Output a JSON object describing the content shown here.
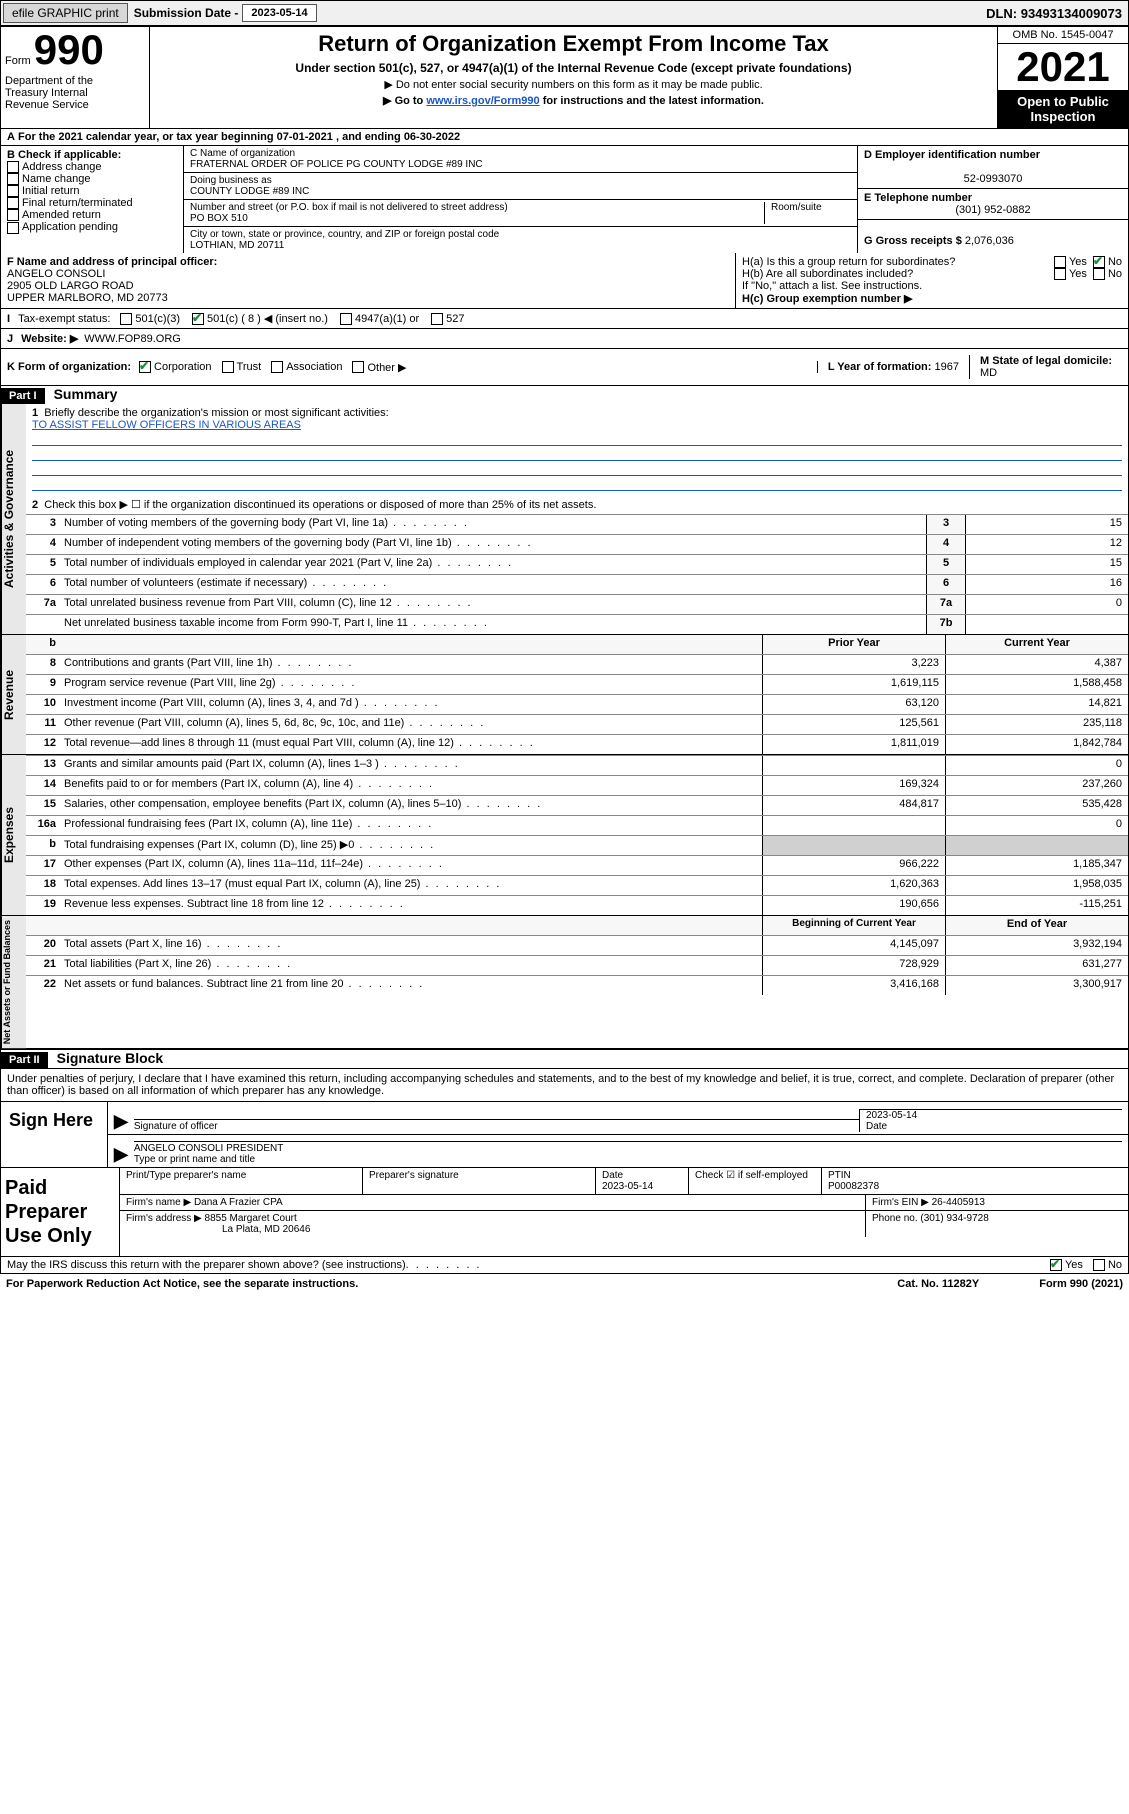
{
  "topbar": {
    "efile": "efile GRAPHIC print",
    "subm_label": "Submission Date - ",
    "subm_date": "2023-05-14",
    "dln_label": "DLN: ",
    "dln": "93493134009073"
  },
  "header": {
    "form_label": "Form",
    "form_num": "990",
    "title": "Return of Organization Exempt From Income Tax",
    "sub": "Under section 501(c), 527, or 4947(a)(1) of the Internal Revenue Code (except private foundations)",
    "note1": "▶ Do not enter social security numbers on this form as it may be made public.",
    "note2_pre": "▶ Go to ",
    "note2_link": "www.irs.gov/Form990",
    "note2_post": " for instructions and the latest information.",
    "omb": "OMB No. 1545-0047",
    "year": "2021",
    "open_public": "Open to Public Inspection",
    "dept": "Department of the Treasury\nInternal Revenue Service"
  },
  "cal_year": {
    "a": "A",
    "text": " For the 2021 calendar year, or tax year beginning ",
    "begin": "07-01-2021",
    "mid": " , and ending ",
    "end": "06-30-2022"
  },
  "box_b": {
    "title": "B Check if applicable:",
    "items": [
      "Address change",
      "Name change",
      "Initial return",
      "Final return/terminated",
      "Amended return",
      "Application pending"
    ]
  },
  "box_c": {
    "name_label": "C Name of organization",
    "name": "FRATERNAL ORDER OF POLICE PG COUNTY LODGE #89 INC",
    "dba_label": "Doing business as",
    "dba": "COUNTY LODGE #89 INC",
    "addr_label": "Number and street (or P.O. box if mail is not delivered to street address)",
    "room_label": "Room/suite",
    "addr": "PO BOX 510",
    "city_label": "City or town, state or province, country, and ZIP or foreign postal code",
    "city": "LOTHIAN, MD  20711"
  },
  "box_d": {
    "label": "D Employer identification number",
    "ein": "52-0993070"
  },
  "box_e": {
    "label": "E Telephone number",
    "phone": "(301) 952-0882"
  },
  "box_g": {
    "label": "G Gross receipts $ ",
    "val": "2,076,036"
  },
  "box_f": {
    "label": "F Name and address of principal officer:",
    "name": "ANGELO CONSOLI",
    "addr1": "2905 OLD LARGO ROAD",
    "addr2": "UPPER MARLBORO, MD  20773"
  },
  "box_h": {
    "ha": "H(a)  Is this a group return for subordinates?",
    "hb": "H(b)  Are all subordinates included?",
    "hb_note": "If \"No,\" attach a list. See instructions.",
    "hc": "H(c)  Group exemption number ▶",
    "yes": "Yes",
    "no": "No"
  },
  "row_i": {
    "label": "I",
    "tax_status": "Tax-exempt status:",
    "opts": [
      "501(c)(3)",
      "501(c) ( 8 ) ◀ (insert no.)",
      "4947(a)(1) or",
      "527"
    ]
  },
  "row_j": {
    "label": "J",
    "website_label": "Website: ▶",
    "website": "WWW.FOP89.ORG"
  },
  "row_k": {
    "label": "K Form of organization:",
    "opts": [
      "Corporation",
      "Trust",
      "Association",
      "Other ▶"
    ]
  },
  "row_l": {
    "label": "L Year of formation: ",
    "val": "1967"
  },
  "row_m": {
    "label": "M State of legal domicile:",
    "val": "MD"
  },
  "part1": {
    "label": "Part I",
    "title": "Summary",
    "q1": "Briefly describe the organization's mission or most significant activities:",
    "mission": "TO ASSIST FELLOW OFFICERS IN VARIOUS AREAS",
    "q2": "Check this box ▶ ☐  if the organization discontinued its operations or disposed of more than 25% of its net assets.",
    "lines_gov": [
      {
        "n": "3",
        "d": "Number of voting members of the governing body (Part VI, line 1a)",
        "box": "3",
        "v": "15"
      },
      {
        "n": "4",
        "d": "Number of independent voting members of the governing body (Part VI, line 1b)",
        "box": "4",
        "v": "12"
      },
      {
        "n": "5",
        "d": "Total number of individuals employed in calendar year 2021 (Part V, line 2a)",
        "box": "5",
        "v": "15"
      },
      {
        "n": "6",
        "d": "Total number of volunteers (estimate if necessary)",
        "box": "6",
        "v": "16"
      },
      {
        "n": "7a",
        "d": "Total unrelated business revenue from Part VIII, column (C), line 12",
        "box": "7a",
        "v": "0"
      },
      {
        "n": "",
        "d": "Net unrelated business taxable income from Form 990-T, Part I, line 11",
        "box": "7b",
        "v": ""
      }
    ],
    "col_prior": "Prior Year",
    "col_current": "Current Year",
    "lines_rev": [
      {
        "n": "8",
        "d": "Contributions and grants (Part VIII, line 1h)",
        "p": "3,223",
        "c": "4,387"
      },
      {
        "n": "9",
        "d": "Program service revenue (Part VIII, line 2g)",
        "p": "1,619,115",
        "c": "1,588,458"
      },
      {
        "n": "10",
        "d": "Investment income (Part VIII, column (A), lines 3, 4, and 7d )",
        "p": "63,120",
        "c": "14,821"
      },
      {
        "n": "11",
        "d": "Other revenue (Part VIII, column (A), lines 5, 6d, 8c, 9c, 10c, and 11e)",
        "p": "125,561",
        "c": "235,118"
      },
      {
        "n": "12",
        "d": "Total revenue—add lines 8 through 11 (must equal Part VIII, column (A), line 12)",
        "p": "1,811,019",
        "c": "1,842,784"
      }
    ],
    "lines_exp": [
      {
        "n": "13",
        "d": "Grants and similar amounts paid (Part IX, column (A), lines 1–3 )",
        "p": "",
        "c": "0"
      },
      {
        "n": "14",
        "d": "Benefits paid to or for members (Part IX, column (A), line 4)",
        "p": "169,324",
        "c": "237,260"
      },
      {
        "n": "15",
        "d": "Salaries, other compensation, employee benefits (Part IX, column (A), lines 5–10)",
        "p": "484,817",
        "c": "535,428"
      },
      {
        "n": "16a",
        "d": "Professional fundraising fees (Part IX, column (A), line 11e)",
        "p": "",
        "c": "0"
      },
      {
        "n": "b",
        "d": "Total fundraising expenses (Part IX, column (D), line 25) ▶0",
        "p": "gray",
        "c": "gray"
      },
      {
        "n": "17",
        "d": "Other expenses (Part IX, column (A), lines 11a–11d, 11f–24e)",
        "p": "966,222",
        "c": "1,185,347"
      },
      {
        "n": "18",
        "d": "Total expenses. Add lines 13–17 (must equal Part IX, column (A), line 25)",
        "p": "1,620,363",
        "c": "1,958,035"
      },
      {
        "n": "19",
        "d": "Revenue less expenses. Subtract line 18 from line 12",
        "p": "190,656",
        "c": "-115,251"
      }
    ],
    "col_begin": "Beginning of Current Year",
    "col_end": "End of Year",
    "lines_net": [
      {
        "n": "20",
        "d": "Total assets (Part X, line 16)",
        "p": "4,145,097",
        "c": "3,932,194"
      },
      {
        "n": "21",
        "d": "Total liabilities (Part X, line 26)",
        "p": "728,929",
        "c": "631,277"
      },
      {
        "n": "22",
        "d": "Net assets or fund balances. Subtract line 21 from line 20",
        "p": "3,416,168",
        "c": "3,300,917"
      }
    ],
    "tab_gov": "Activities & Governance",
    "tab_rev": "Revenue",
    "tab_exp": "Expenses",
    "tab_net": "Net Assets or Fund Balances"
  },
  "part2": {
    "label": "Part II",
    "title": "Signature Block",
    "penalty": "Under penalties of perjury, I declare that I have examined this return, including accompanying schedules and statements, and to the best of my knowledge and belief, it is true, correct, and complete. Declaration of preparer (other than officer) is based on all information of which preparer has any knowledge."
  },
  "sign": {
    "here": "Sign Here",
    "sig_officer": "Signature of officer",
    "date": "Date",
    "date_val": "2023-05-14",
    "name": "ANGELO CONSOLI  PRESIDENT",
    "name_label": "Type or print name and title"
  },
  "preparer": {
    "label": "Paid Preparer Use Only",
    "print_label": "Print/Type preparer's name",
    "sig_label": "Preparer's signature",
    "date_label": "Date",
    "date_val": "2023-05-14",
    "check_label": "Check ☑ if self-employed",
    "ptin_label": "PTIN",
    "ptin": "P00082378",
    "firm_name_label": "Firm's name    ▶",
    "firm_name": "Dana A Frazier CPA",
    "firm_ein_label": "Firm's EIN ▶",
    "firm_ein": "26-4405913",
    "firm_addr_label": "Firm's address ▶",
    "firm_addr1": "8855 Margaret Court",
    "firm_addr2": "La Plata, MD  20646",
    "phone_label": "Phone no. ",
    "phone": "(301) 934-9728"
  },
  "footer": {
    "discuss": "May the IRS discuss this return with the preparer shown above? (see instructions)",
    "yes": "Yes",
    "no": "No",
    "paperwork": "For Paperwork Reduction Act Notice, see the separate instructions.",
    "cat": "Cat. No. 11282Y",
    "form": "Form 990 (2021)"
  }
}
